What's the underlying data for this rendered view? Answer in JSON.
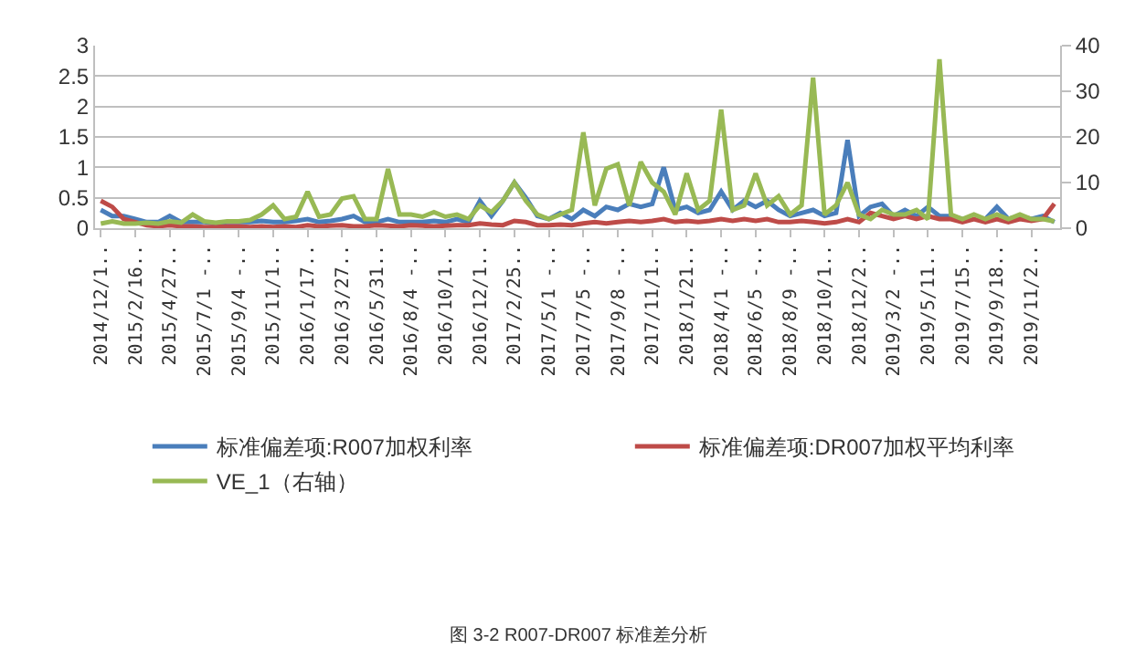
{
  "chart_data": {
    "type": "line",
    "categories": [
      "2014/12/1..",
      null,
      null,
      "2015/2/16..",
      null,
      null,
      "2015/4/27..",
      null,
      null,
      "2015/7/1 -..",
      null,
      null,
      "2015/9/4 -..",
      null,
      null,
      "2015/11/1..",
      null,
      null,
      "2016/1/17..",
      null,
      null,
      "2016/3/27..",
      null,
      null,
      "2016/5/31..",
      null,
      null,
      "2016/8/4 -..",
      null,
      null,
      "2016/10/1..",
      null,
      null,
      "2016/12/1..",
      null,
      null,
      "2017/2/25..",
      null,
      null,
      "2017/5/1 -..",
      null,
      null,
      "2017/7/5 -..",
      null,
      null,
      "2017/9/8 -..",
      null,
      null,
      "2017/11/1..",
      null,
      null,
      "2018/1/21..",
      null,
      null,
      "2018/4/1 -..",
      null,
      null,
      "2018/6/5 -..",
      null,
      null,
      "2018/8/9 -..",
      null,
      null,
      "2018/10/1..",
      null,
      null,
      "2018/12/2..",
      null,
      null,
      "2019/3/2 -..",
      null,
      null,
      "2019/5/11..",
      null,
      null,
      "2019/7/15..",
      null,
      null,
      "2019/9/18..",
      null,
      null,
      "2019/11/2..",
      null,
      null
    ],
    "series": [
      {
        "name": "标准偏差项:R007加权利率",
        "color": "#4a7ebb",
        "values": [
          0.3,
          0.2,
          0.2,
          0.15,
          0.1,
          0.1,
          0.2,
          0.1,
          0.1,
          0.1,
          0.08,
          0.1,
          0.1,
          0.1,
          0.12,
          0.1,
          0.1,
          0.12,
          0.15,
          0.1,
          0.12,
          0.15,
          0.2,
          0.1,
          0.1,
          0.15,
          0.1,
          0.1,
          0.1,
          0.12,
          0.1,
          0.15,
          0.1,
          0.45,
          0.2,
          0.45,
          0.75,
          0.5,
          0.2,
          0.15,
          0.25,
          0.15,
          0.3,
          0.2,
          0.35,
          0.3,
          0.4,
          0.35,
          0.4,
          1.0,
          0.3,
          0.35,
          0.25,
          0.3,
          0.6,
          0.3,
          0.45,
          0.35,
          0.45,
          0.3,
          0.2,
          0.25,
          0.3,
          0.2,
          0.25,
          1.45,
          0.2,
          0.35,
          0.4,
          0.2,
          0.3,
          0.2,
          0.35,
          0.2,
          0.2,
          0.15,
          null,
          0.15,
          0.35,
          0.15,
          0.2,
          0.15,
          0.2,
          0.1
        ]
      },
      {
        "name": "标准偏差项:DR007加权平均利率",
        "color": "#be4b48",
        "values": [
          0.45,
          0.35,
          0.15,
          0.1,
          0.05,
          0.03,
          0.05,
          0.03,
          0.03,
          0.02,
          0.02,
          0.03,
          0.03,
          0.02,
          0.03,
          0.02,
          0.03,
          0.02,
          0.05,
          0.03,
          0.04,
          0.05,
          0.03,
          0.03,
          0.05,
          0.04,
          0.03,
          0.05,
          0.04,
          0.03,
          0.04,
          0.05,
          0.05,
          0.08,
          0.06,
          0.05,
          0.12,
          0.1,
          0.05,
          0.05,
          0.06,
          0.05,
          0.08,
          0.1,
          0.08,
          0.1,
          0.12,
          0.1,
          0.12,
          0.15,
          0.1,
          0.12,
          0.1,
          0.12,
          0.15,
          0.12,
          0.15,
          0.12,
          0.15,
          0.1,
          0.1,
          0.12,
          0.1,
          0.08,
          0.1,
          0.15,
          0.1,
          0.25,
          0.2,
          0.15,
          0.2,
          0.15,
          0.2,
          0.15,
          0.15,
          0.1,
          0.15,
          0.1,
          0.15,
          0.1,
          0.15,
          0.12,
          0.15,
          0.4
        ]
      },
      {
        "name": "VE_1（右轴）",
        "color": "#98b954",
        "axis": "y2",
        "values": [
          1,
          1.5,
          1,
          1,
          1.2,
          1,
          1.5,
          1.2,
          3,
          1.5,
          1.2,
          1.5,
          1.5,
          1.8,
          3,
          5,
          2,
          2.5,
          8,
          2.5,
          3,
          6.5,
          7,
          2,
          2,
          13,
          3,
          3,
          2.5,
          3.5,
          2.5,
          3,
          2,
          5,
          3.5,
          6,
          10,
          6,
          3,
          2,
          3,
          4,
          21,
          5,
          13,
          14,
          5,
          14.5,
          10,
          8,
          3,
          12,
          4,
          6,
          26,
          4,
          5,
          12,
          5,
          7,
          3,
          5,
          33,
          3,
          5,
          10,
          3,
          2,
          4,
          3,
          3,
          4,
          2,
          37,
          3,
          2,
          3,
          2,
          3,
          2,
          3,
          2,
          2,
          1.5
        ]
      }
    ],
    "ylim": [
      0,
      3
    ],
    "yticks": [
      0,
      0.5,
      1,
      1.5,
      2,
      2.5,
      3
    ],
    "y2lim": [
      0,
      40
    ],
    "y2ticks": [
      0,
      10,
      20,
      30,
      40
    ],
    "grid": "y",
    "legend": "bottom",
    "marker": "none",
    "line_style": "solid",
    "annotations": [
      "图 3-2 R007-DR007 标准差分析"
    ]
  }
}
